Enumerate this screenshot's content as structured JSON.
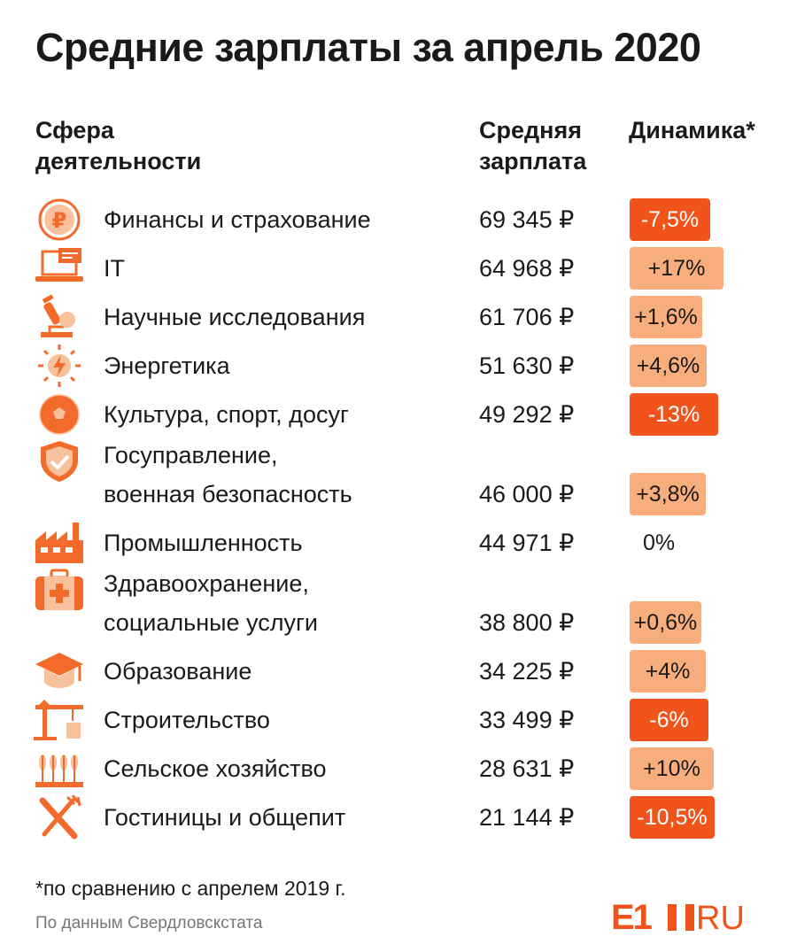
{
  "title": "Средние зарплаты за апрель 2020",
  "headers": {
    "sphere": "Сфера\nдеятельности",
    "salary": "Средняя\nзарплата",
    "dynamics": "Динамика*"
  },
  "colors": {
    "icon": "#f26b2a",
    "icon_light": "#f9c19b",
    "negative": "#f0541a",
    "positive": "#f7ad7c",
    "logo": "#f0541a"
  },
  "chart_data": {
    "type": "table",
    "columns": [
      "Сфера деятельности",
      "Средняя зарплата",
      "Динамика*"
    ],
    "rows": [
      {
        "icon": "ruble-coin-icon",
        "sector": "Финансы и страхование",
        "salary": "69 345 ₽",
        "salary_value": 69345,
        "change": "-7,5%",
        "change_value": -7.5
      },
      {
        "icon": "laptop-icon",
        "sector": "IT",
        "salary": "64 968 ₽",
        "salary_value": 64968,
        "change": "+17%",
        "change_value": 17
      },
      {
        "icon": "microscope-icon",
        "sector": "Научные исследования",
        "salary": "61 706 ₽",
        "salary_value": 61706,
        "change": "+1,6%",
        "change_value": 1.6
      },
      {
        "icon": "lightning-icon",
        "sector": "Энергетика",
        "salary": "51 630 ₽",
        "salary_value": 51630,
        "change": "+4,6%",
        "change_value": 4.6
      },
      {
        "icon": "soccer-ball-icon",
        "sector": "Культура, спорт, досуг",
        "salary": "49 292 ₽",
        "salary_value": 49292,
        "change": "-13%",
        "change_value": -13
      },
      {
        "icon": "shield-check-icon",
        "sector": "Госуправление,\nвоенная безопасность",
        "salary": "46 000 ₽",
        "salary_value": 46000,
        "change": "+3,8%",
        "change_value": 3.8
      },
      {
        "icon": "factory-icon",
        "sector": "Промышленность",
        "salary": "44 971 ₽",
        "salary_value": 44971,
        "change": "0%",
        "change_value": 0
      },
      {
        "icon": "first-aid-kit-icon",
        "sector": "Здравоохранение,\nсоциальные услуги",
        "salary": "38 800 ₽",
        "salary_value": 38800,
        "change": "+0,6%",
        "change_value": 0.6
      },
      {
        "icon": "graduation-cap-icon",
        "sector": "Образование",
        "salary": "34 225 ₽",
        "salary_value": 34225,
        "change": "+4%",
        "change_value": 4
      },
      {
        "icon": "crane-icon",
        "sector": "Строительство",
        "salary": "33 499 ₽",
        "salary_value": 33499,
        "change": "-6%",
        "change_value": -6
      },
      {
        "icon": "wheat-icon",
        "sector": "Сельское хозяйство",
        "salary": "28 631 ₽",
        "salary_value": 28631,
        "change": "+10%",
        "change_value": 10
      },
      {
        "icon": "fork-knife-icon",
        "sector": "Гостиницы и общепит",
        "salary": "21 144 ₽",
        "salary_value": 21144,
        "change": "-10,5%",
        "change_value": -10.5
      }
    ]
  },
  "footnote": "*по сравнению с апрелем 2019 г.",
  "source": "По данным Свердловскстата",
  "logo": {
    "text_left": "E1",
    "text_right": "RU"
  }
}
